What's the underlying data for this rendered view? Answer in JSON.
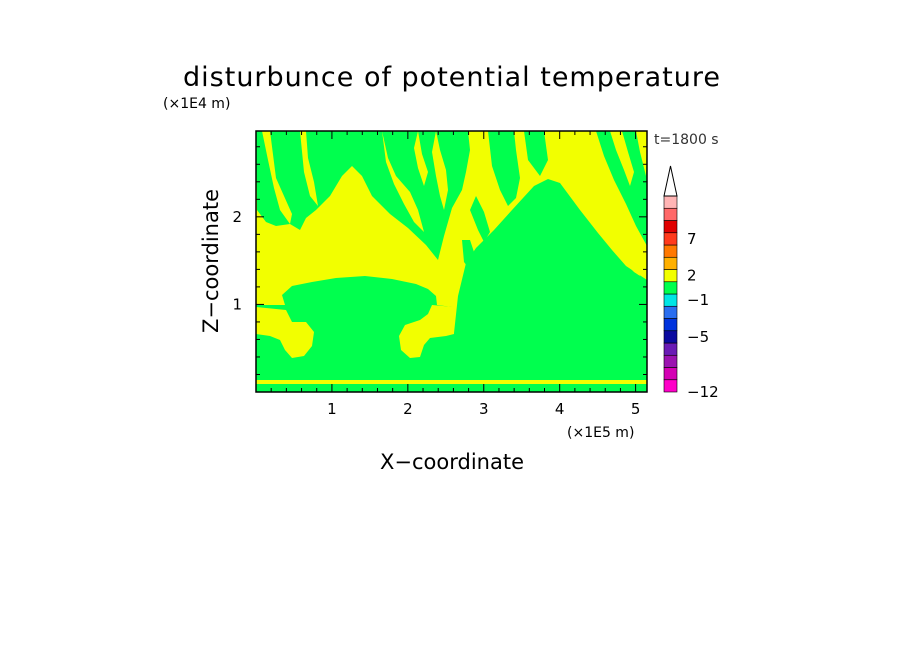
{
  "chart_data": {
    "type": "heatmap",
    "title": "disturbunce of potential temperature",
    "xlabel": "X−coordinate",
    "ylabel": "Z−coordinate",
    "x_unit": "(×1E5 m)",
    "y_unit": "(×1E4 m)",
    "time_label": "t=1800 s",
    "xlim": [
      0,
      5.15
    ],
    "ylim": [
      0,
      2.98
    ],
    "x_ticks": [
      {
        "value": 1,
        "label": "1"
      },
      {
        "value": 2,
        "label": "2"
      },
      {
        "value": 3,
        "label": "3"
      },
      {
        "value": 4,
        "label": "4"
      },
      {
        "value": 5,
        "label": "5"
      }
    ],
    "y_ticks": [
      {
        "value": 1,
        "label": "1"
      },
      {
        "value": 2,
        "label": "2"
      }
    ],
    "field_colors": {
      "background": "#f2ff00",
      "main": "#00ff4e"
    },
    "colorbar": {
      "levels_bottom_to_top": [
        "#ff00c8",
        "#d400b4",
        "#9b12b0",
        "#6a1bb5",
        "#0a0aa0",
        "#0033dd",
        "#2a6ef0",
        "#00e5e5",
        "#00ff4e",
        "#f2ff00",
        "#ffb000",
        "#ff7800",
        "#ff3a1c",
        "#e00000",
        "#ff6868",
        "#ffb4b4"
      ],
      "extend_top_color": "#ffffff",
      "labels": [
        {
          "text": "−12",
          "level": 0
        },
        {
          "text": "−5",
          "level": 4.5
        },
        {
          "text": "−1",
          "level": 7.5
        },
        {
          "text": "2",
          "level": 9.5
        },
        {
          "text": "7",
          "level": 12.5
        }
      ]
    }
  }
}
